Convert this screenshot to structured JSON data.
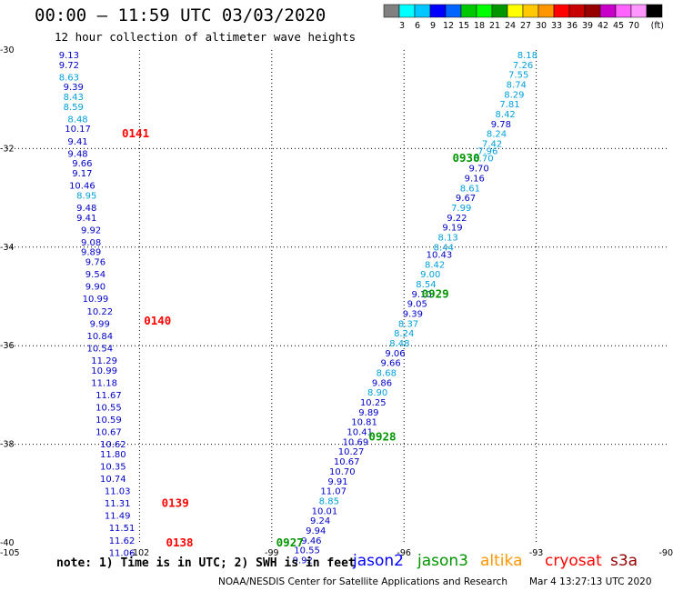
{
  "header": {
    "title": "00:00 – 11:59 UTC 03/03/2020",
    "subtitle": "12 hour collection of altimeter wave heights"
  },
  "scale": {
    "unit_label": "(ft)",
    "colors": [
      "#808080",
      "#00ffff",
      "#00c8ff",
      "#0000ff",
      "#0064ff",
      "#00c800",
      "#00ff00",
      "#009600",
      "#ffff00",
      "#ffc800",
      "#ff9600",
      "#ff0000",
      "#c80000",
      "#960000",
      "#c800c8",
      "#ff64ff",
      "#ff96ff",
      "#000000"
    ],
    "labels": [
      "3",
      "6",
      "9",
      "12",
      "15",
      "18",
      "21",
      "24",
      "27",
      "30",
      "33",
      "36",
      "39",
      "42",
      "45",
      "70"
    ]
  },
  "footer": {
    "note": "note:  1) Time is in UTC;  2) SWH is in feet",
    "credit": "NOAA/NESDIS Center for Satellite Applications and Research",
    "timestamp": "Mar  4 13:27:13 UTC 2020",
    "satellites": [
      {
        "name": "jason2",
        "color": "#0000ff"
      },
      {
        "name": "jason3",
        "color": "#009600"
      },
      {
        "name": "altika",
        "color": "#ff9600"
      },
      {
        "name": "cryosat",
        "color": "#ff0000"
      },
      {
        "name": "s3a",
        "color": "#960000"
      }
    ]
  },
  "chart_data": {
    "type": "scatter",
    "xlim": [
      -105,
      -90
    ],
    "ylim": [
      -40,
      -30
    ],
    "x_ticks": [
      "-105",
      "-102",
      "-99",
      "-96",
      "-93",
      "-90"
    ],
    "y_ticks": [
      "-30",
      "-32",
      "-34",
      "-36",
      "-38",
      "-40"
    ],
    "grid": true,
    "tracks": [
      {
        "color": "#ff0000",
        "pass_labels": [
          {
            "text": "0141",
            "lon": -102.4,
            "lat": -31.7
          },
          {
            "text": "0140",
            "lon": -101.9,
            "lat": -35.5
          },
          {
            "text": "0139",
            "lon": -101.5,
            "lat": -39.2
          },
          {
            "text": "0138",
            "lon": -101.4,
            "lat": -40.0
          }
        ],
        "points": [
          {
            "lon": -103.6,
            "lat": -30.1,
            "v": "9.13",
            "c": "#0000c8"
          },
          {
            "lon": -103.6,
            "lat": -30.3,
            "v": "9.72",
            "c": "#0000c8"
          },
          {
            "lon": -103.6,
            "lat": -30.55,
            "v": "8.63",
            "c": "#00a0dc"
          },
          {
            "lon": -103.5,
            "lat": -30.75,
            "v": "9.39",
            "c": "#0000c8"
          },
          {
            "lon": -103.5,
            "lat": -30.95,
            "v": "8.43",
            "c": "#00a0dc"
          },
          {
            "lon": -103.5,
            "lat": -31.15,
            "v": "8.59",
            "c": "#00a0dc"
          },
          {
            "lon": -103.4,
            "lat": -31.4,
            "v": "8.48",
            "c": "#00a0dc"
          },
          {
            "lon": -103.4,
            "lat": -31.6,
            "v": "10.17",
            "c": "#0000c8"
          },
          {
            "lon": -103.4,
            "lat": -31.85,
            "v": "9.41",
            "c": "#0000c8"
          },
          {
            "lon": -103.4,
            "lat": -32.1,
            "v": "9.48",
            "c": "#0000c8"
          },
          {
            "lon": -103.3,
            "lat": -32.3,
            "v": "9.66",
            "c": "#0000c8"
          },
          {
            "lon": -103.3,
            "lat": -32.5,
            "v": "9.17",
            "c": "#0000c8"
          },
          {
            "lon": -103.3,
            "lat": -32.75,
            "v": "10.46",
            "c": "#0000c8"
          },
          {
            "lon": -103.2,
            "lat": -32.95,
            "v": "8.95",
            "c": "#00a0dc"
          },
          {
            "lon": -103.2,
            "lat": -33.2,
            "v": "9.48",
            "c": "#0000c8"
          },
          {
            "lon": -103.2,
            "lat": -33.4,
            "v": "9.41",
            "c": "#0000c8"
          },
          {
            "lon": -103.1,
            "lat": -33.65,
            "v": "9.92",
            "c": "#0000c8"
          },
          {
            "lon": -103.1,
            "lat": -33.9,
            "v": "9.08",
            "c": "#0000c8"
          },
          {
            "lon": -103.1,
            "lat": -34.1,
            "v": "9.89",
            "c": "#0000c8"
          },
          {
            "lon": -103.0,
            "lat": -34.3,
            "v": "9.76",
            "c": "#0000c8"
          },
          {
            "lon": -103.0,
            "lat": -34.55,
            "v": "9.54",
            "c": "#0000c8"
          },
          {
            "lon": -103.0,
            "lat": -34.8,
            "v": "9.90",
            "c": "#0000c8"
          },
          {
            "lon": -103.0,
            "lat": -35.05,
            "v": "10.99",
            "c": "#0000c8"
          },
          {
            "lon": -102.9,
            "lat": -35.3,
            "v": "10.22",
            "c": "#0000c8"
          },
          {
            "lon": -102.9,
            "lat": -35.55,
            "v": "9.99",
            "c": "#0000c8"
          },
          {
            "lon": -102.9,
            "lat": -35.8,
            "v": "10.84",
            "c": "#0000c8"
          },
          {
            "lon": -102.9,
            "lat": -36.05,
            "v": "10.54",
            "c": "#0000c8"
          },
          {
            "lon": -102.8,
            "lat": -36.3,
            "v": "11.29",
            "c": "#0000c8"
          },
          {
            "lon": -102.8,
            "lat": -36.5,
            "v": "10.99",
            "c": "#0000c8"
          },
          {
            "lon": -102.8,
            "lat": -36.75,
            "v": "11.18",
            "c": "#0000c8"
          },
          {
            "lon": -102.7,
            "lat": -37.0,
            "v": "11.67",
            "c": "#0000c8"
          },
          {
            "lon": -102.7,
            "lat": -37.25,
            "v": "10.55",
            "c": "#0000c8"
          },
          {
            "lon": -102.7,
            "lat": -37.5,
            "v": "10.59",
            "c": "#0000c8"
          },
          {
            "lon": -102.7,
            "lat": -37.75,
            "v": "10.67",
            "c": "#0000c8"
          },
          {
            "lon": -102.6,
            "lat": -38.0,
            "v": "10.62",
            "c": "#0000c8"
          },
          {
            "lon": -102.6,
            "lat": -38.2,
            "v": "11.80",
            "c": "#0000c8"
          },
          {
            "lon": -102.6,
            "lat": -38.45,
            "v": "10.35",
            "c": "#0000c8"
          },
          {
            "lon": -102.6,
            "lat": -38.7,
            "v": "10.74",
            "c": "#0000c8"
          },
          {
            "lon": -102.5,
            "lat": -38.95,
            "v": "11.03",
            "c": "#0000c8"
          },
          {
            "lon": -102.5,
            "lat": -39.2,
            "v": "11.31",
            "c": "#0000c8"
          },
          {
            "lon": -102.5,
            "lat": -39.45,
            "v": "11.49",
            "c": "#0000c8"
          },
          {
            "lon": -102.4,
            "lat": -39.7,
            "v": "11.51",
            "c": "#0000c8"
          },
          {
            "lon": -102.4,
            "lat": -39.95,
            "v": "11.62",
            "c": "#0000c8"
          },
          {
            "lon": -102.4,
            "lat": -40.2,
            "v": "11.06",
            "c": "#0000c8"
          }
        ]
      },
      {
        "color": "#009600",
        "pass_labels": [
          {
            "text": "0930",
            "lon": -94.9,
            "lat": -32.2
          },
          {
            "text": "0929",
            "lon": -95.6,
            "lat": -34.95
          },
          {
            "text": "0928",
            "lon": -96.8,
            "lat": -37.85
          },
          {
            "text": "0927",
            "lon": -98.9,
            "lat": -40.0
          }
        ],
        "points": [
          {
            "lon": -93.2,
            "lat": -30.1,
            "v": "8.18",
            "c": "#00a0dc"
          },
          {
            "lon": -93.3,
            "lat": -30.3,
            "v": "7.26",
            "c": "#00a0dc"
          },
          {
            "lon": -93.4,
            "lat": -30.5,
            "v": "7.55",
            "c": "#00a0dc"
          },
          {
            "lon": -93.45,
            "lat": -30.7,
            "v": "8.74",
            "c": "#00a0dc"
          },
          {
            "lon": -93.5,
            "lat": -30.9,
            "v": "8.29",
            "c": "#00a0dc"
          },
          {
            "lon": -93.6,
            "lat": -31.1,
            "v": "7.81",
            "c": "#00a0dc"
          },
          {
            "lon": -93.7,
            "lat": -31.3,
            "v": "8.42",
            "c": "#00a0dc"
          },
          {
            "lon": -93.8,
            "lat": -31.5,
            "v": "9.78",
            "c": "#0000c8"
          },
          {
            "lon": -93.9,
            "lat": -31.7,
            "v": "8.24",
            "c": "#00a0dc"
          },
          {
            "lon": -94.0,
            "lat": -31.9,
            "v": "7.42",
            "c": "#00a0dc"
          },
          {
            "lon": -94.1,
            "lat": -32.05,
            "v": "7.96",
            "c": "#00a0dc"
          },
          {
            "lon": -94.2,
            "lat": -32.2,
            "v": "8.70",
            "c": "#00a0dc"
          },
          {
            "lon": -94.3,
            "lat": -32.4,
            "v": "9.70",
            "c": "#0000c8"
          },
          {
            "lon": -94.4,
            "lat": -32.6,
            "v": "9.16",
            "c": "#0000c8"
          },
          {
            "lon": -94.5,
            "lat": -32.8,
            "v": "8.61",
            "c": "#00a0dc"
          },
          {
            "lon": -94.6,
            "lat": -33.0,
            "v": "9.67",
            "c": "#0000c8"
          },
          {
            "lon": -94.7,
            "lat": -33.2,
            "v": "7.99",
            "c": "#00a0dc"
          },
          {
            "lon": -94.8,
            "lat": -33.4,
            "v": "9.22",
            "c": "#0000c8"
          },
          {
            "lon": -94.9,
            "lat": -33.6,
            "v": "9.19",
            "c": "#0000c8"
          },
          {
            "lon": -95.0,
            "lat": -33.8,
            "v": "8.13",
            "c": "#00a0dc"
          },
          {
            "lon": -95.1,
            "lat": -34.0,
            "v": "8.44",
            "c": "#00a0dc"
          },
          {
            "lon": -95.2,
            "lat": -34.15,
            "v": "10.43",
            "c": "#0000c8"
          },
          {
            "lon": -95.3,
            "lat": -34.35,
            "v": "8.42",
            "c": "#00a0dc"
          },
          {
            "lon": -95.4,
            "lat": -34.55,
            "v": "9.00",
            "c": "#00a0dc"
          },
          {
            "lon": -95.5,
            "lat": -34.75,
            "v": "8.54",
            "c": "#00a0dc"
          },
          {
            "lon": -95.6,
            "lat": -34.95,
            "v": "9.10",
            "c": "#0000c8"
          },
          {
            "lon": -95.7,
            "lat": -35.15,
            "v": "9.05",
            "c": "#0000c8"
          },
          {
            "lon": -95.8,
            "lat": -35.35,
            "v": "9.39",
            "c": "#0000c8"
          },
          {
            "lon": -95.9,
            "lat": -35.55,
            "v": "8.37",
            "c": "#00a0dc"
          },
          {
            "lon": -96.0,
            "lat": -35.75,
            "v": "8.24",
            "c": "#00a0dc"
          },
          {
            "lon": -96.1,
            "lat": -35.95,
            "v": "8.48",
            "c": "#00a0dc"
          },
          {
            "lon": -96.2,
            "lat": -36.15,
            "v": "9.06",
            "c": "#0000c8"
          },
          {
            "lon": -96.3,
            "lat": -36.35,
            "v": "9.66",
            "c": "#0000c8"
          },
          {
            "lon": -96.4,
            "lat": -36.55,
            "v": "8.68",
            "c": "#00a0dc"
          },
          {
            "lon": -96.5,
            "lat": -36.75,
            "v": "9.86",
            "c": "#0000c8"
          },
          {
            "lon": -96.6,
            "lat": -36.95,
            "v": "8.90",
            "c": "#00a0dc"
          },
          {
            "lon": -96.7,
            "lat": -37.15,
            "v": "10.25",
            "c": "#0000c8"
          },
          {
            "lon": -96.8,
            "lat": -37.35,
            "v": "9.89",
            "c": "#0000c8"
          },
          {
            "lon": -96.9,
            "lat": -37.55,
            "v": "10.81",
            "c": "#0000c8"
          },
          {
            "lon": -97.0,
            "lat": -37.75,
            "v": "10.41",
            "c": "#0000c8"
          },
          {
            "lon": -97.1,
            "lat": -37.95,
            "v": "10.69",
            "c": "#0000c8"
          },
          {
            "lon": -97.2,
            "lat": -38.15,
            "v": "10.27",
            "c": "#0000c8"
          },
          {
            "lon": -97.3,
            "lat": -38.35,
            "v": "10.67",
            "c": "#0000c8"
          },
          {
            "lon": -97.4,
            "lat": -38.55,
            "v": "10.70",
            "c": "#0000c8"
          },
          {
            "lon": -97.5,
            "lat": -38.75,
            "v": "9.91",
            "c": "#0000c8"
          },
          {
            "lon": -97.6,
            "lat": -38.95,
            "v": "11.07",
            "c": "#0000c8"
          },
          {
            "lon": -97.7,
            "lat": -39.15,
            "v": "8.85",
            "c": "#00a0dc"
          },
          {
            "lon": -97.8,
            "lat": -39.35,
            "v": "10.01",
            "c": "#0000c8"
          },
          {
            "lon": -97.9,
            "lat": -39.55,
            "v": "9.24",
            "c": "#0000c8"
          },
          {
            "lon": -98.0,
            "lat": -39.75,
            "v": "9.94",
            "c": "#0000c8"
          },
          {
            "lon": -98.1,
            "lat": -39.95,
            "v": "9.46",
            "c": "#0000c8"
          },
          {
            "lon": -98.2,
            "lat": -40.15,
            "v": "10.55",
            "c": "#0000c8"
          },
          {
            "lon": -98.3,
            "lat": -40.35,
            "v": "9.92",
            "c": "#0000c8"
          }
        ]
      }
    ]
  }
}
